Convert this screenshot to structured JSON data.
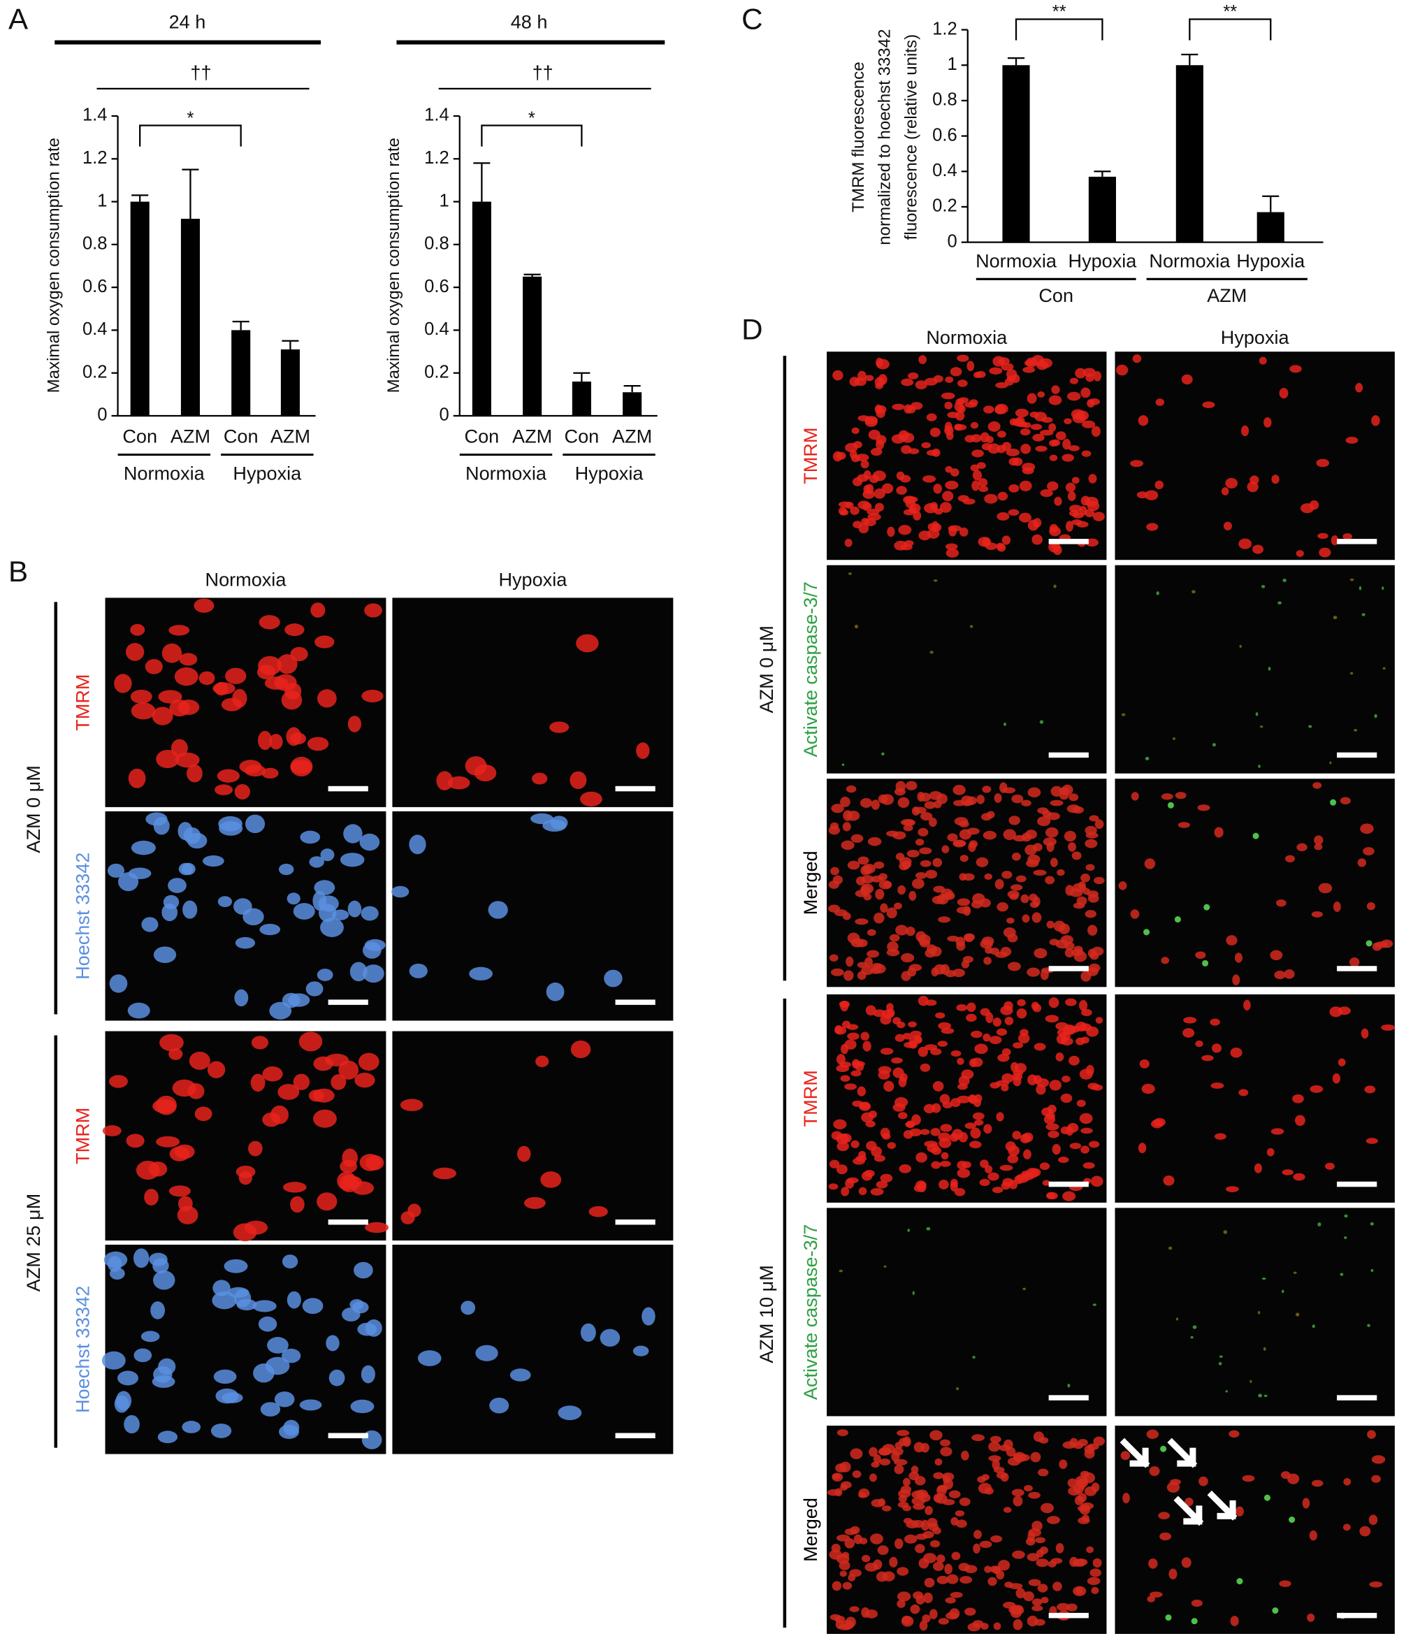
{
  "panel_labels": {
    "a": "A",
    "b": "B",
    "c": "C",
    "d": "D"
  },
  "chart_data": [
    {
      "type": "bar",
      "time": "24 h",
      "group_annotation": "††",
      "y_label": [
        "Maximal oxygen consumption rate"
      ],
      "categories": [
        "Con",
        "AZM",
        "Con",
        "AZM"
      ],
      "groups": [
        "Normoxia",
        "Hypoxia"
      ],
      "values": [
        1.0,
        0.92,
        0.4,
        0.31
      ],
      "errors": [
        0.03,
        0.23,
        0.04,
        0.04
      ],
      "color": "#000000",
      "ylim": [
        0,
        1.4
      ],
      "yticks": [
        0,
        0.2,
        0.4,
        0.6,
        0.8,
        1,
        1.2,
        1.4
      ],
      "significance": [
        {
          "label": "*",
          "between": [
            0,
            2
          ]
        }
      ]
    },
    {
      "type": "bar",
      "time": "48 h",
      "group_annotation": "††",
      "y_label": [
        "Maximal oxygen consumption rate"
      ],
      "categories": [
        "Con",
        "AZM",
        "Con",
        "AZM"
      ],
      "groups": [
        "Normoxia",
        "Hypoxia"
      ],
      "values": [
        1.0,
        0.65,
        0.16,
        0.11
      ],
      "errors": [
        0.18,
        0.01,
        0.04,
        0.03
      ],
      "color": "#000000",
      "ylim": [
        0,
        1.4
      ],
      "yticks": [
        0,
        0.2,
        0.4,
        0.6,
        0.8,
        1,
        1.2,
        1.4
      ],
      "significance": [
        {
          "label": "*",
          "between": [
            0,
            2
          ]
        }
      ]
    },
    {
      "type": "bar",
      "y_label": [
        "TMRM fluorescence",
        "normalized to hoechst 33342",
        "fluorescence (relative units)"
      ],
      "categories": [
        "Normoxia",
        "Hypoxia",
        "Normoxia",
        "Hypoxia"
      ],
      "groups": [
        "Con",
        "AZM"
      ],
      "values": [
        1.0,
        0.37,
        1.0,
        0.17
      ],
      "errors": [
        0.04,
        0.03,
        0.06,
        0.09
      ],
      "color": "#000000",
      "ylim": [
        0,
        1.2
      ],
      "yticks": [
        0,
        0.2,
        0.4,
        0.6,
        0.8,
        1,
        1.2
      ],
      "significance": [
        {
          "label": "**",
          "between": [
            0,
            1
          ]
        },
        {
          "label": "**",
          "between": [
            2,
            3
          ]
        }
      ]
    }
  ],
  "panel_b": {
    "columns": [
      "Normoxia",
      "Hypoxia"
    ],
    "groups": [
      {
        "label": "AZM 0 μM",
        "rows": [
          {
            "label": "TMRM",
            "color": "#e8231c"
          },
          {
            "label": "Hoechst 33342",
            "color": "#5b8fe0"
          }
        ]
      },
      {
        "label": "AZM 25 μM",
        "rows": [
          {
            "label": "TMRM",
            "color": "#e8231c"
          },
          {
            "label": "Hoechst 33342",
            "color": "#5b8fe0"
          }
        ]
      }
    ]
  },
  "panel_d": {
    "columns": [
      "Normoxia",
      "Hypoxia"
    ],
    "groups": [
      {
        "label": "AZM 0 μM",
        "rows": [
          {
            "label": "TMRM",
            "color": "#e8231c"
          },
          {
            "label": "Activate caspase-3/7",
            "color": "#2ea043"
          },
          {
            "label": "Merged",
            "color": "#000000"
          }
        ]
      },
      {
        "label": "AZM 10 μM",
        "rows": [
          {
            "label": "TMRM",
            "color": "#e8231c"
          },
          {
            "label": "Activate caspase-3/7",
            "color": "#2ea043"
          },
          {
            "label": "Merged",
            "color": "#000000"
          }
        ]
      }
    ]
  }
}
